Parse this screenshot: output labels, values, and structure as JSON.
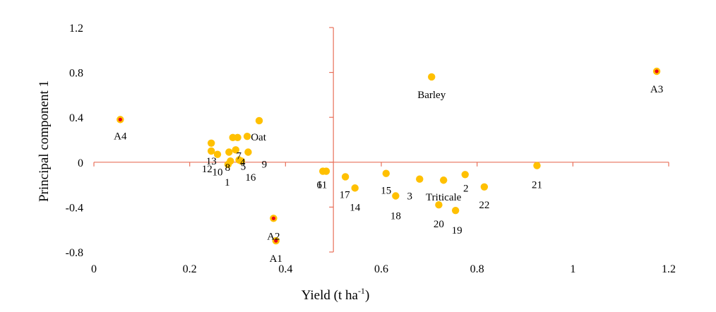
{
  "chart_data": {
    "type": "scatter",
    "xlabel": "Yield (t ha",
    "xlabel_sup": "-1",
    "xlabel_end": ")",
    "ylabel": "Principal component 1",
    "xlim": [
      0,
      1.2
    ],
    "ylim": [
      -0.8,
      1.2
    ],
    "x_ticks": [
      0,
      0.2,
      0.4,
      0.6,
      0.8,
      1,
      1.2
    ],
    "x_tick_labels": [
      "0",
      "0.2",
      "0.4",
      "0.6",
      "0.8",
      "1",
      "1.2"
    ],
    "y_ticks": [
      -0.8,
      -0.4,
      0,
      0.4,
      0.8,
      1.2
    ],
    "y_tick_labels": [
      "-0.8",
      "-0.4",
      "0",
      "0.4",
      "0.8",
      "1.2"
    ],
    "axis_crossing": {
      "x": 0.5,
      "y": 0
    },
    "grid": false,
    "colors": {
      "point": "#FFC000",
      "marked_center": "#E8001C",
      "axis": "#E8705A"
    },
    "points": [
      {
        "x": 0.055,
        "y": 0.38,
        "label": "A4",
        "marked": true
      },
      {
        "x": 0.375,
        "y": -0.5,
        "label": "A2",
        "marked": true
      },
      {
        "x": 0.38,
        "y": -0.7,
        "label": "A1",
        "marked": true
      },
      {
        "x": 1.175,
        "y": 0.81,
        "label": "A3",
        "marked": true
      },
      {
        "x": 0.705,
        "y": 0.76,
        "label": "Barley"
      },
      {
        "x": 0.345,
        "y": 0.37,
        "label": ""
      },
      {
        "x": 0.32,
        "y": 0.23,
        "label": "Oat"
      },
      {
        "x": 0.29,
        "y": 0.22,
        "label": ""
      },
      {
        "x": 0.3,
        "y": 0.22,
        "label": ""
      },
      {
        "x": 0.245,
        "y": 0.17,
        "label": "13"
      },
      {
        "x": 0.245,
        "y": 0.1,
        "label": "12"
      },
      {
        "x": 0.258,
        "y": 0.07,
        "label": "10"
      },
      {
        "x": 0.282,
        "y": 0.09,
        "label": "7"
      },
      {
        "x": 0.296,
        "y": 0.11,
        "label": "4"
      },
      {
        "x": 0.285,
        "y": 0.01,
        "label": "8"
      },
      {
        "x": 0.303,
        "y": 0.02,
        "label": "5"
      },
      {
        "x": 0.28,
        "y": -0.02,
        "label": "1"
      },
      {
        "x": 0.308,
        "y": 0.01,
        "label": "16"
      },
      {
        "x": 0.322,
        "y": 0.09,
        "label": "9"
      },
      {
        "x": 0.478,
        "y": -0.08,
        "label": "6"
      },
      {
        "x": 0.485,
        "y": -0.08,
        "label": "11"
      },
      {
        "x": 0.525,
        "y": -0.13,
        "label": "17"
      },
      {
        "x": 0.545,
        "y": -0.23,
        "label": "14"
      },
      {
        "x": 0.61,
        "y": -0.1,
        "label": "15"
      },
      {
        "x": 0.63,
        "y": -0.3,
        "label": "18"
      },
      {
        "x": 0.68,
        "y": -0.15,
        "label": "3"
      },
      {
        "x": 0.73,
        "y": -0.16,
        "label": "Triticale"
      },
      {
        "x": 0.72,
        "y": -0.38,
        "label": "20"
      },
      {
        "x": 0.755,
        "y": -0.43,
        "label": "19"
      },
      {
        "x": 0.775,
        "y": -0.11,
        "label": "2"
      },
      {
        "x": 0.815,
        "y": -0.22,
        "label": "22"
      },
      {
        "x": 0.925,
        "y": -0.03,
        "label": "21"
      }
    ]
  }
}
